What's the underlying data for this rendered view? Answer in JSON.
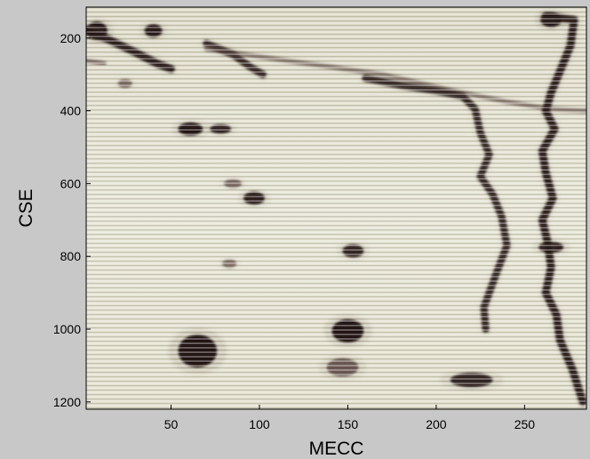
{
  "chart_data": {
    "type": "heatmap",
    "title": "",
    "xlabel": "MECC",
    "ylabel": "CSE",
    "xlim": [
      2,
      285
    ],
    "ylim": [
      1220,
      115
    ],
    "y_reversed": true,
    "xticks": [
      50,
      100,
      150,
      200,
      250
    ],
    "yticks": [
      200,
      400,
      600,
      800,
      1000,
      1200
    ],
    "xtick_labels": [
      "50",
      "100",
      "150",
      "200",
      "250"
    ],
    "ytick_labels": [
      "200",
      "400",
      "600",
      "800",
      "1000",
      "1200"
    ],
    "colormap": [
      "#f2f1e6",
      "#d9d6c1",
      "#a8a08a",
      "#5a4440",
      "#1a0f0f"
    ],
    "background_color": "#e6e4d4",
    "stripes": true,
    "grid": false,
    "features": [
      {
        "kind": "spot",
        "x": 65,
        "y": 1060,
        "rx": 11,
        "ry": 45,
        "intensity": 1.0
      },
      {
        "kind": "spot",
        "x": 150,
        "y": 1005,
        "rx": 9,
        "ry": 32,
        "intensity": 0.98
      },
      {
        "kind": "spot",
        "x": 147,
        "y": 1105,
        "rx": 9,
        "ry": 25,
        "intensity": 0.7
      },
      {
        "kind": "spot",
        "x": 220,
        "y": 1140,
        "rx": 12,
        "ry": 20,
        "intensity": 0.75
      },
      {
        "kind": "spot",
        "x": 153,
        "y": 785,
        "rx": 6,
        "ry": 18,
        "intensity": 0.75
      },
      {
        "kind": "spot",
        "x": 61,
        "y": 450,
        "rx": 7,
        "ry": 18,
        "intensity": 0.9
      },
      {
        "kind": "spot",
        "x": 78,
        "y": 450,
        "rx": 6,
        "ry": 13,
        "intensity": 0.75
      },
      {
        "kind": "spot",
        "x": 97,
        "y": 640,
        "rx": 6,
        "ry": 18,
        "intensity": 0.8
      },
      {
        "kind": "spot",
        "x": 85,
        "y": 600,
        "rx": 5,
        "ry": 12,
        "intensity": 0.5
      },
      {
        "kind": "spot",
        "x": 40,
        "y": 180,
        "rx": 5,
        "ry": 18,
        "intensity": 0.85
      },
      {
        "kind": "spot",
        "x": 24,
        "y": 325,
        "rx": 4,
        "ry": 12,
        "intensity": 0.45
      },
      {
        "kind": "spot",
        "x": 83,
        "y": 820,
        "rx": 4,
        "ry": 12,
        "intensity": 0.4
      },
      {
        "kind": "spot",
        "x": 265,
        "y": 150,
        "rx": 6,
        "ry": 20,
        "intensity": 1.0
      },
      {
        "kind": "spot",
        "x": 265,
        "y": 775,
        "rx": 7,
        "ry": 15,
        "intensity": 0.85
      },
      {
        "kind": "spot",
        "x": 8,
        "y": 180,
        "rx": 6,
        "ry": 25,
        "intensity": 1.0
      },
      {
        "kind": "trace",
        "intensity": 0.95,
        "points": [
          [
            0,
            175
          ],
          [
            15,
            205
          ],
          [
            30,
            240
          ],
          [
            42,
            270
          ],
          [
            50,
            285
          ]
        ]
      },
      {
        "kind": "trace",
        "intensity": 0.85,
        "points": [
          [
            70,
            215
          ],
          [
            85,
            245
          ],
          [
            95,
            280
          ],
          [
            102,
            300
          ]
        ]
      },
      {
        "kind": "trace",
        "intensity": 0.5,
        "points": [
          [
            0,
            260
          ],
          [
            12,
            270
          ]
        ]
      },
      {
        "kind": "trace",
        "intensity": 0.45,
        "points": [
          [
            70,
            230
          ],
          [
            120,
            265
          ],
          [
            170,
            300
          ],
          [
            210,
            345
          ],
          [
            240,
            375
          ],
          [
            265,
            395
          ],
          [
            285,
            400
          ]
        ]
      },
      {
        "kind": "trace",
        "intensity": 0.85,
        "points": [
          [
            160,
            310
          ],
          [
            180,
            330
          ],
          [
            200,
            345
          ],
          [
            215,
            360
          ],
          [
            222,
            395
          ],
          [
            225,
            460
          ],
          [
            230,
            520
          ],
          [
            225,
            580
          ],
          [
            232,
            630
          ],
          [
            237,
            690
          ],
          [
            240,
            770
          ],
          [
            233,
            860
          ],
          [
            227,
            940
          ],
          [
            228,
            1000
          ]
        ]
      },
      {
        "kind": "trace",
        "intensity": 0.95,
        "points": [
          [
            262,
            140
          ],
          [
            278,
            150
          ],
          [
            276,
            220
          ],
          [
            271,
            280
          ],
          [
            265,
            350
          ],
          [
            262,
            400
          ],
          [
            267,
            450
          ],
          [
            260,
            510
          ],
          [
            262,
            570
          ],
          [
            266,
            640
          ],
          [
            260,
            700
          ],
          [
            263,
            760
          ],
          [
            265,
            830
          ],
          [
            262,
            900
          ],
          [
            268,
            960
          ],
          [
            270,
            1030
          ],
          [
            277,
            1110
          ],
          [
            283,
            1200
          ]
        ]
      }
    ]
  }
}
